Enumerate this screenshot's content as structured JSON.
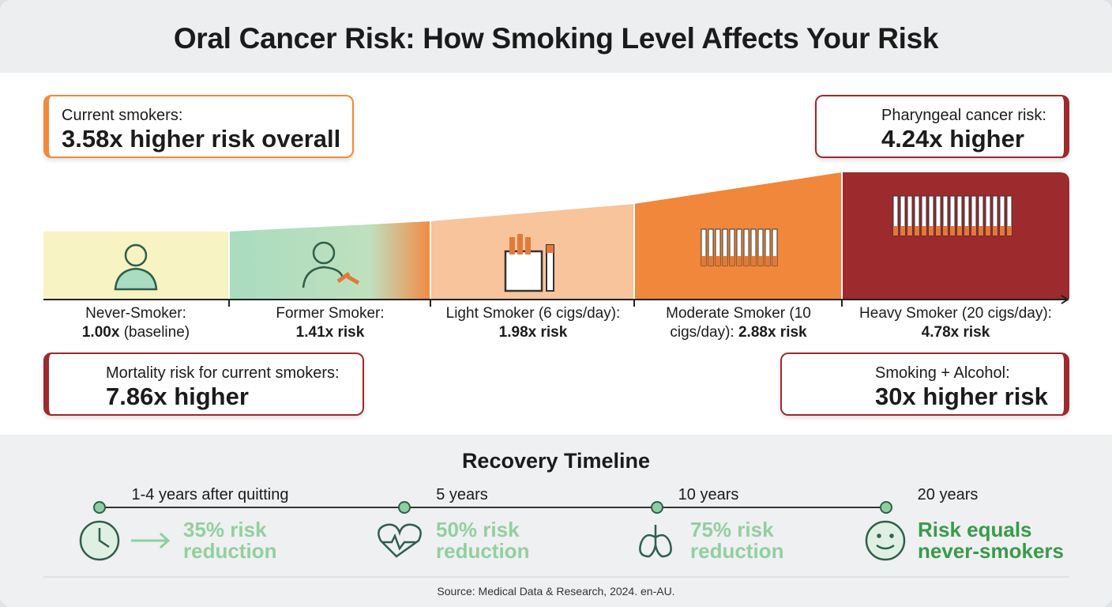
{
  "header": {
    "title": "Oral Cancer Risk: How Smoking Level Affects Your Risk"
  },
  "callouts": [
    {
      "label": "Current smokers:",
      "value": "3.58x higher risk overall"
    },
    {
      "label": "Pharyngeal cancer risk:",
      "value": "4.24x higher"
    },
    {
      "label": "Mortality risk for current smokers:",
      "value": "7.86x higher"
    },
    {
      "label": "Smoking + Alcohol:",
      "value": "30x higher risk"
    }
  ],
  "levels": [
    {
      "label": "Never-Smoker:",
      "value": "1.00x",
      "suffix": "(baseline)"
    },
    {
      "label": "Former Smoker:",
      "value": "1.41x risk"
    },
    {
      "label": "Light Smoker (6 cigs/day):",
      "value": "1.98x risk"
    },
    {
      "label": "Moderate Smoker (10 cigs/day):",
      "value": "2.88x risk"
    },
    {
      "label": "Heavy Smoker (20 cigs/day):",
      "value": "4.78x risk"
    }
  ],
  "timeline": {
    "title": "Recovery Timeline",
    "milestones": [
      {
        "time": "1-4 years after quitting",
        "effect": "35% risk reduction"
      },
      {
        "time": "5 years",
        "effect": "50% risk reduction"
      },
      {
        "time": "10 years",
        "effect": "75% risk reduction"
      },
      {
        "time": "20 years",
        "effect": "Risk equals never-smokers"
      }
    ]
  },
  "source": "Source: Medical Data & Research, 2024. en-AU."
}
